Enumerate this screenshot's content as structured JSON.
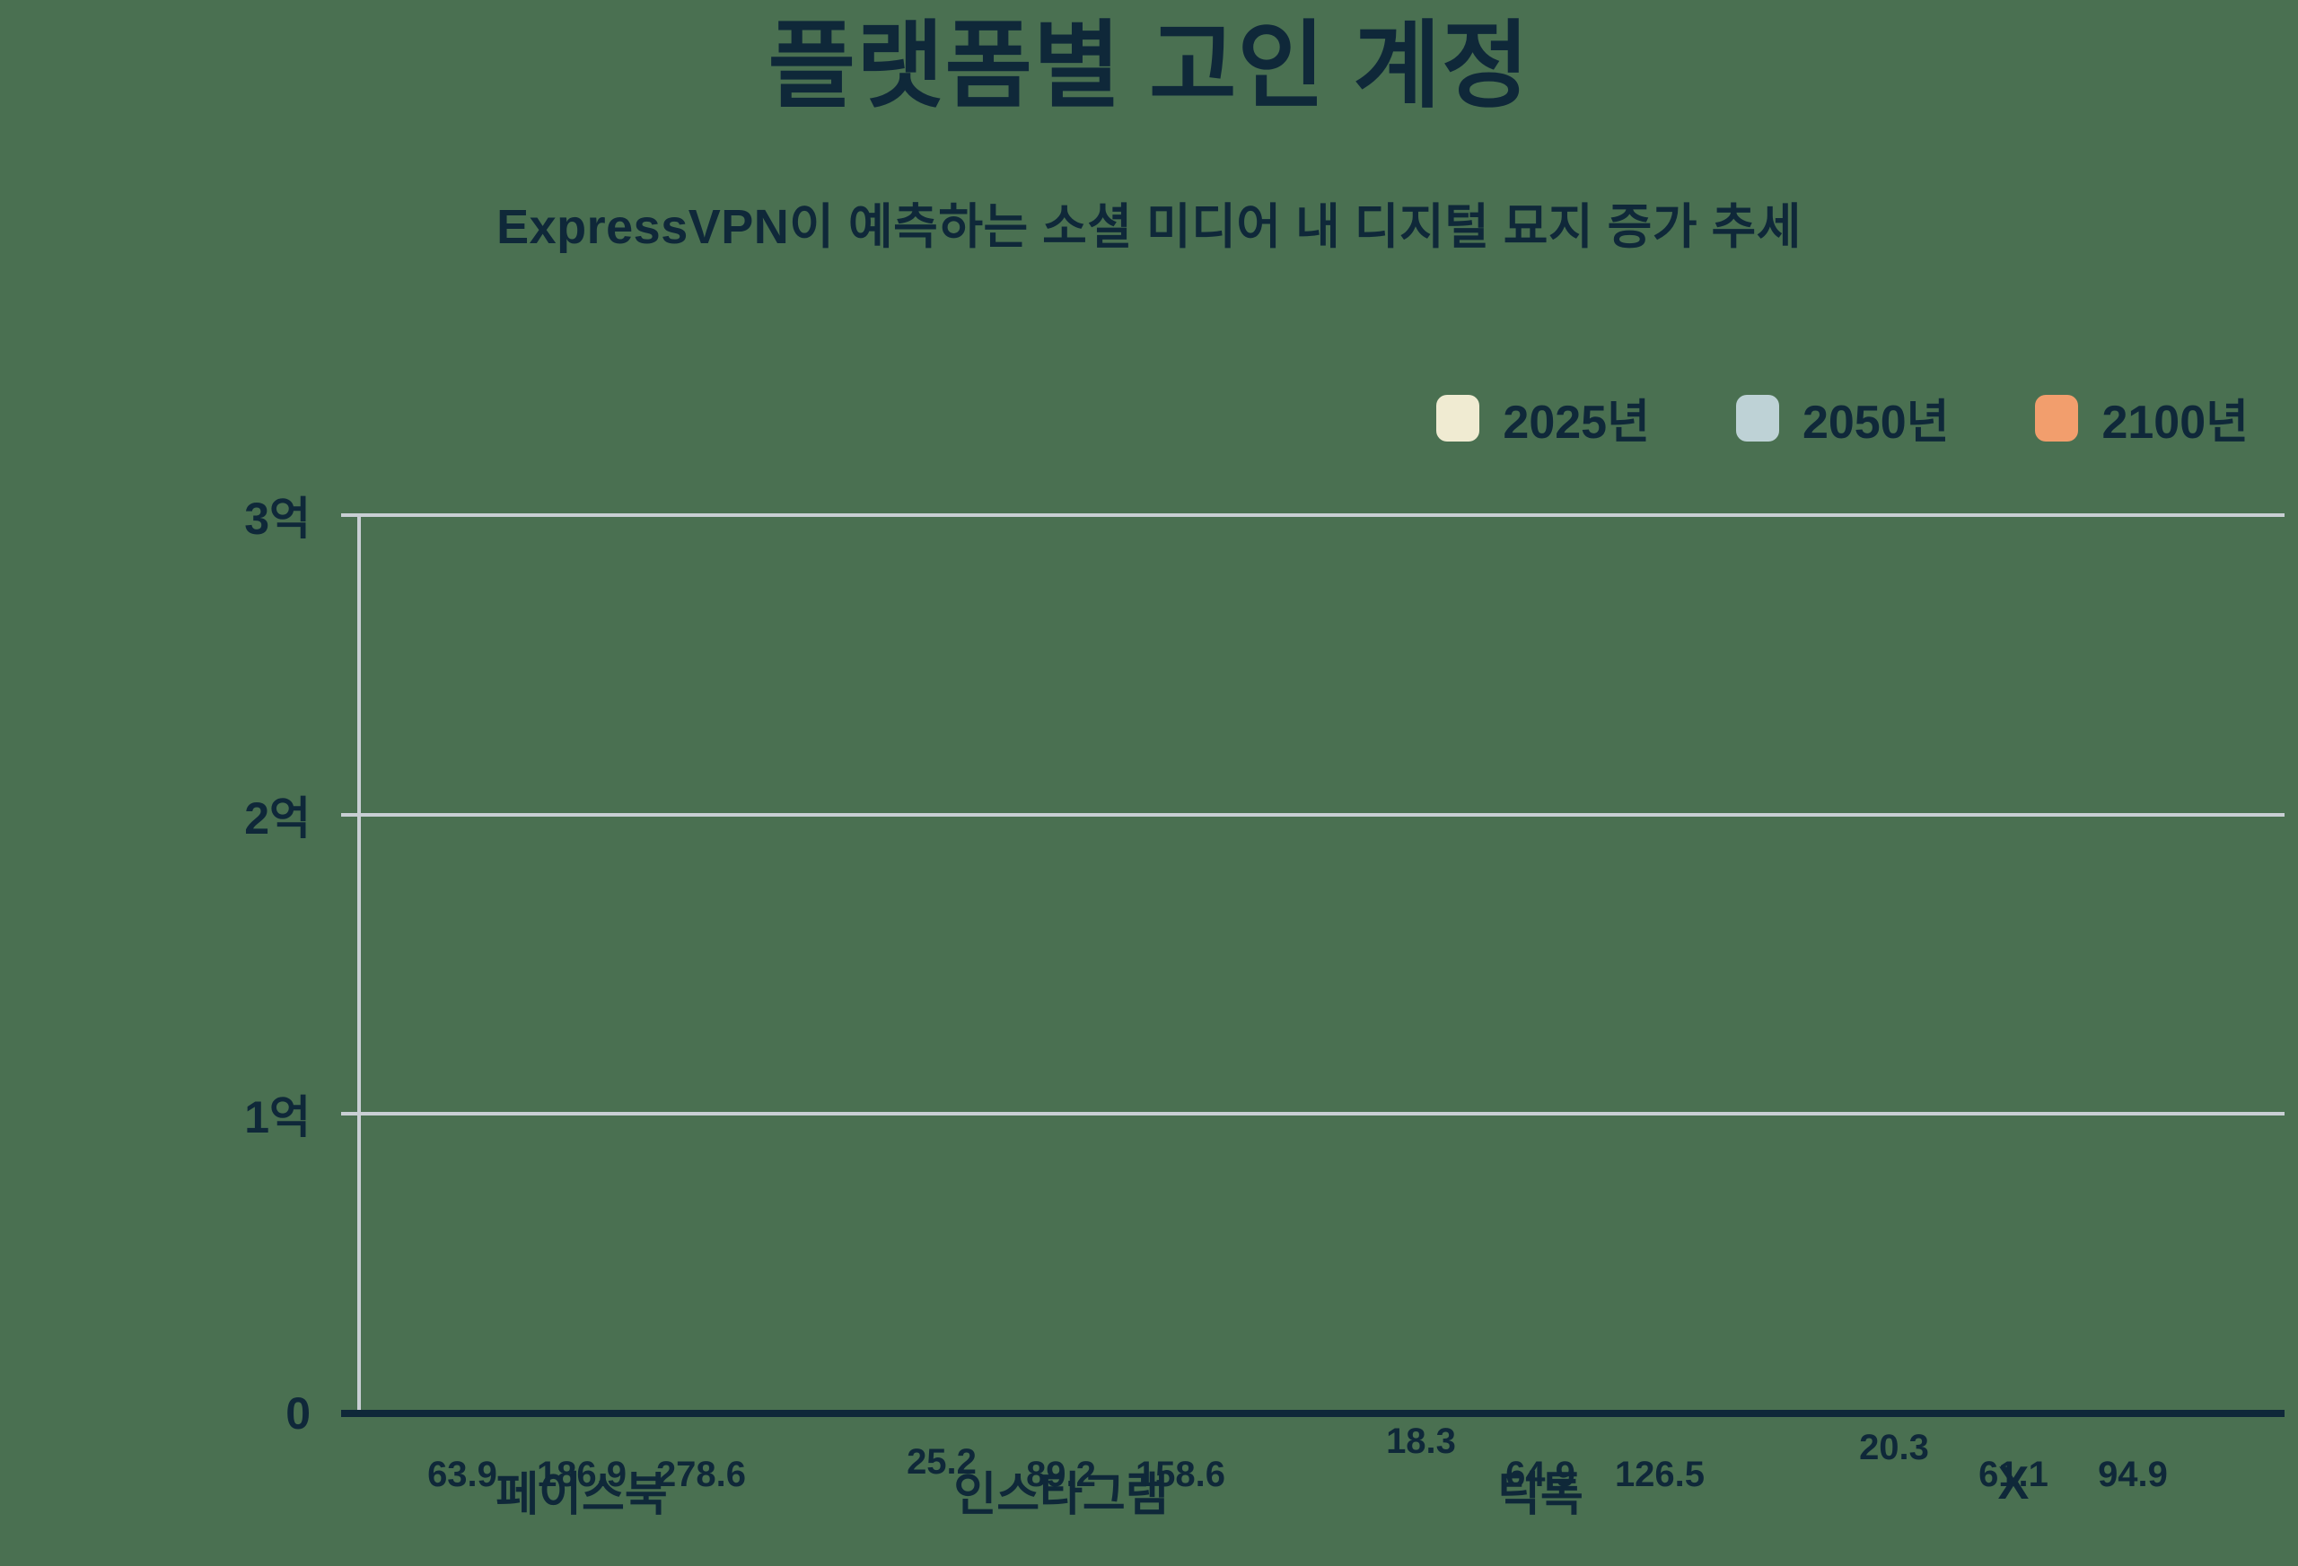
{
  "chart_data": {
    "type": "bar",
    "title": "플랫폼별 고인 계정",
    "subtitle": "ExpressVPN이 예측하는 소셜 미디어 내 디지털 묘지 증가 추세",
    "categories": [
      "페이스북",
      "인스타그램",
      "틱톡",
      "X"
    ],
    "series": [
      {
        "name": "2025년",
        "color": "#f0ebd2",
        "values": [
          63.9,
          25.2,
          18.3,
          20.3
        ]
      },
      {
        "name": "2050년",
        "color": "#bed2d6",
        "values": [
          186.9,
          89.2,
          64.9,
          61.1
        ]
      },
      {
        "name": "2100년",
        "color": "#f29e6d",
        "values": [
          278.6,
          158.6,
          126.5,
          94.9
        ]
      }
    ],
    "y_axis_ticks": [
      {
        "label": "3억",
        "value": 300
      },
      {
        "label": "2억",
        "value": 200
      },
      {
        "label": "1억",
        "value": 100
      },
      {
        "label": "0",
        "value": 0
      }
    ],
    "ylim": [
      0,
      300
    ],
    "grid": true,
    "legend_position": "top-right",
    "value_labels_shown": true
  },
  "colors": {
    "background": "#4a7051",
    "text": "#0f2839",
    "gridline": "#c9cfd4",
    "axis_baseline": "#0f2839",
    "series_2025": "#f0ebd2",
    "series_2050": "#bed2d6",
    "series_2100": "#f29e6d"
  }
}
